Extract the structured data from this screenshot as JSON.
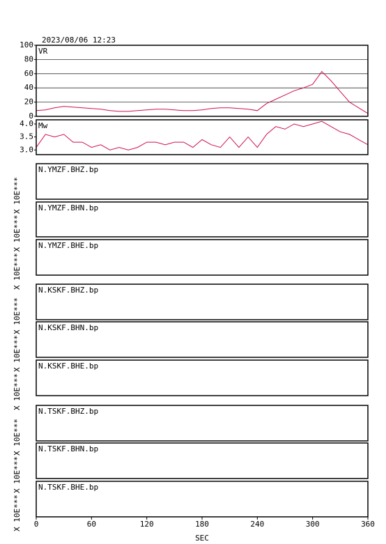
{
  "chart_data": [
    {
      "type": "line",
      "title": "2023/08/06 12:23",
      "label": "VR",
      "color": "#d0104c",
      "grid": true,
      "x": [
        0,
        10,
        20,
        30,
        40,
        50,
        60,
        70,
        80,
        90,
        100,
        110,
        120,
        130,
        140,
        150,
        160,
        170,
        180,
        190,
        200,
        210,
        220,
        230,
        240,
        250,
        260,
        270,
        280,
        290,
        300,
        310,
        320,
        330,
        340,
        350,
        360
      ],
      "values": [
        8,
        9,
        12,
        14,
        13,
        12,
        11,
        10,
        8,
        7,
        7,
        8,
        9,
        10,
        10,
        9,
        8,
        8,
        9,
        11,
        12,
        12,
        11,
        10,
        8,
        18,
        24,
        30,
        36,
        40,
        45,
        63,
        50,
        35,
        20,
        12,
        4
      ],
      "xlim": [
        0,
        360
      ],
      "ylim": [
        0,
        100
      ],
      "yticks": [
        0,
        20,
        40,
        60,
        80,
        100
      ]
    },
    {
      "type": "line",
      "label": "Mw",
      "color": "#d0104c",
      "x": [
        0,
        10,
        20,
        30,
        40,
        50,
        60,
        70,
        80,
        90,
        100,
        110,
        120,
        130,
        140,
        150,
        160,
        170,
        180,
        190,
        200,
        210,
        220,
        230,
        240,
        250,
        260,
        270,
        280,
        290,
        300,
        310,
        320,
        330,
        340,
        350,
        360
      ],
      "values": [
        3.1,
        3.6,
        3.5,
        3.6,
        3.3,
        3.3,
        3.1,
        3.2,
        3.0,
        3.1,
        3.0,
        3.1,
        3.3,
        3.3,
        3.2,
        3.3,
        3.3,
        3.1,
        3.4,
        3.2,
        3.1,
        3.5,
        3.1,
        3.5,
        3.1,
        3.6,
        3.9,
        3.8,
        4.0,
        3.9,
        4.0,
        4.1,
        3.9,
        3.7,
        3.6,
        3.4,
        3.2
      ],
      "xlim": [
        0,
        360
      ],
      "ylim": [
        2.82,
        4.16
      ],
      "yticks": [
        {
          "value": 3,
          "label": "3.0"
        },
        {
          "value": 3.5,
          "label": "3.5"
        },
        {
          "value": 4,
          "label": "4.0"
        }
      ]
    },
    {
      "type": "trace",
      "label": "N.YMZF.BHZ.bp",
      "ylabel": "X 10E***"
    },
    {
      "type": "trace",
      "label": "N.YMZF.BHN.bp",
      "ylabel": "X 10E***"
    },
    {
      "type": "trace",
      "label": "N.YMZF.BHE.bp",
      "ylabel": "X 10E***"
    },
    {
      "type": "trace",
      "label": "N.KSKF.BHZ.bp",
      "ylabel": "X 10E***"
    },
    {
      "type": "trace",
      "label": "N.KSKF.BHN.bp",
      "ylabel": "X 10E***"
    },
    {
      "type": "trace",
      "label": "N.KSKF.BHE.bp",
      "ylabel": "X 10E***"
    },
    {
      "type": "trace",
      "label": "N.TSKF.BHZ.bp",
      "ylabel": "X 10E***"
    },
    {
      "type": "trace",
      "label": "N.TSKF.BHN.bp",
      "ylabel": "X 10E***"
    },
    {
      "type": "trace",
      "label": "N.TSKF.BHE.bp",
      "ylabel": "X 10E***",
      "xlim": [
        0,
        360
      ],
      "xticks": [
        0,
        60,
        120,
        180,
        240,
        300,
        360
      ],
      "xlabel": "SEC"
    }
  ]
}
